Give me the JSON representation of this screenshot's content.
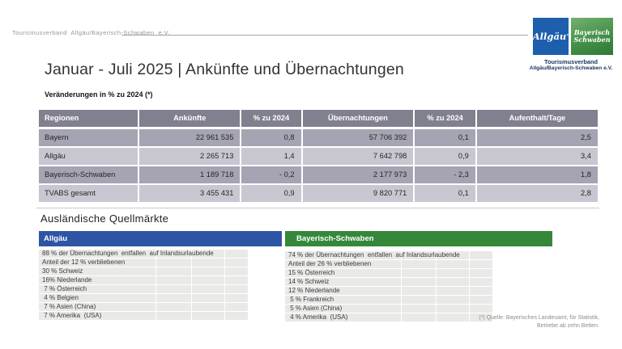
{
  "slide": {
    "corner_text": "Tourismusverband  Allgäu/Bayerisch-Schwaben  e.V.",
    "title": "Januar - Juli 2025 | Ankünfte und Übernachtungen",
    "subtitle": "Veränderungen in % zu 2024 (*)",
    "footnote_line1": "(*) Quelle: Bayerisches Landesamt, für Statistik,",
    "footnote_line2": "Betriebe ab zehn Betten."
  },
  "logo": {
    "allgaeu_label": "Allgäu",
    "allgaeu_color": "#1d5fad",
    "schwaben_label_line1": "Bayerisch",
    "schwaben_label_line2": "Schwaben",
    "schwaben_color": "#2d7a33",
    "caption_line1": "Tourismusverband",
    "caption_line2": "Allgäu/Bayerisch-Schwaben e.V."
  },
  "table": {
    "header_bg": "#81808e",
    "row_bg_dark": "#a5a4b2",
    "row_bg_light": "#c8c7d1",
    "headers": [
      "Regionen",
      "Ankünfte",
      "% zu 2024",
      "Übernachtungen",
      "% zu 2024",
      "Aufenthalt/Tage"
    ],
    "rows": [
      {
        "region": "Bayern",
        "ankuenfte": "22 961 535",
        "pct_ankuenfte": "0,8",
        "uebernachtungen": "57 706 392",
        "pct_uebernachtungen": "0,1",
        "aufenthalt": "2,5"
      },
      {
        "region": "Allgäu",
        "ankuenfte": "2 265 713",
        "pct_ankuenfte": "1,4",
        "uebernachtungen": "7 642 798",
        "pct_uebernachtungen": "0,9",
        "aufenthalt": "3,4"
      },
      {
        "region": "Bayerisch-Schwaben",
        "ankuenfte": "1 189 718",
        "pct_ankuenfte": "- 0,2",
        "uebernachtungen": "2 177 973",
        "pct_uebernachtungen": "- 2,3",
        "aufenthalt": "1,8"
      },
      {
        "region": "TVABS gesamt",
        "ankuenfte": "3 455 431",
        "pct_ankuenfte": "0,9",
        "uebernachtungen": "9 820 771",
        "pct_uebernachtungen": "0,1",
        "aufenthalt": "2,8"
      }
    ]
  },
  "source_markets": {
    "heading": "Ausländische Quellmärkte",
    "panels": [
      {
        "title": "Allgäu",
        "color": "#2e55a4",
        "items": [
          "88 % der Übernachtungen  entfallen  auf Inlandsurlaubende",
          "Anteil der 12 % verbliebenen",
          "30 % Schweiz",
          "16% Niederlande",
          " 7 % Österreich",
          " 4 % Belgien",
          " 7 % Asien (China)",
          " 7 % Amerika  (USA)"
        ]
      },
      {
        "title": "Bayerisch-Schwaben",
        "color": "#35883a",
        "items": [
          "74 % der Übernachtungen  entfallen  auf Inlandsurlaubende",
          "Anteil der 26 % verbliebenen",
          "15 % Österreich",
          "14 % Schweiz",
          "12 % Niederlande",
          " 5 % Frankreich",
          " 5 % Asien (China)",
          " 4 % Amerika  (USA)"
        ]
      }
    ]
  }
}
